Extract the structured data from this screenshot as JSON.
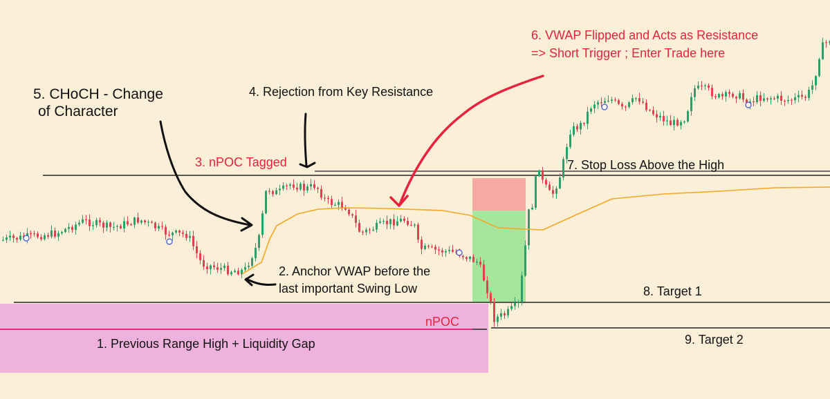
{
  "colors": {
    "background": "#fbefd8",
    "candle_up": "#2e9e6a",
    "candle_down": "#e0404f",
    "vwap": "#f5a623",
    "liquidity_zone": "#efb2dc",
    "npoc_line": "#e0307a",
    "stop_zone": "#f6a9a2",
    "profit_zone": "#a5e59c",
    "arrow_black": "#111111",
    "arrow_red": "#e8223c",
    "level_line": "#222222",
    "annotation_red": "#e8223c"
  },
  "annotations": {
    "zone_label": "1. Previous Range High + Liquidity Gap",
    "npoc_label": "nPOC",
    "anchor_vwap_line1": "2. Anchor VWAP before the",
    "anchor_vwap_line2": "last important Swing Low",
    "npoc_tagged": "3. nPOC Tagged",
    "rejection": "4. Rejection from Key Resistance",
    "choch_line1": "5. CHoCH - Change",
    "choch_line2": "of Character",
    "vwap_flip_line1": "6. VWAP Flipped and Acts as Resistance",
    "vwap_flip_line2": "=> Short Trigger ; Enter Trade here",
    "stop_loss": "7. Stop Loss Above the High",
    "target1": "8. Target 1",
    "target2": "9. Target 2"
  },
  "chart_data": {
    "type": "candlestick",
    "title": "",
    "xlabel": "",
    "ylabel": "",
    "grid": false,
    "legend": "none",
    "series": [
      {
        "name": "",
        "type": "candlestick",
        "points": "approx. 240 candles: ranging, sell-off to swing low, rally to resistance, drop below VWAP, rebound and trend higher"
      },
      {
        "name": "",
        "type": "line",
        "description": "Anchored VWAP from the swing low"
      }
    ],
    "levels": [
      "7. Stop Loss Above the High",
      "8. Target 1",
      "9. Target 2",
      "nPOC"
    ]
  }
}
